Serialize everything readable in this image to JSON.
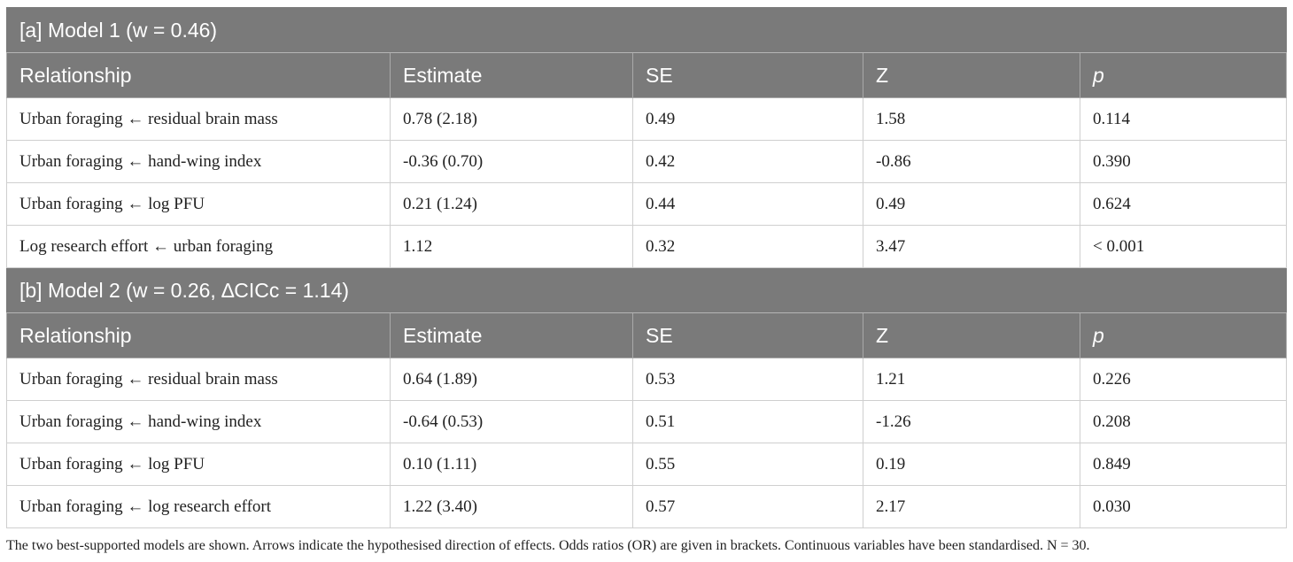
{
  "model1": {
    "title": "[a] Model 1 (w = 0.46)",
    "headers": [
      "Relationship",
      "Estimate",
      "SE",
      "Z",
      "p"
    ],
    "rows": [
      [
        "Urban foraging ← residual brain mass",
        "0.78 (2.18)",
        "0.49",
        "1.58",
        "0.114"
      ],
      [
        "Urban foraging ← hand-wing index",
        "-0.36 (0.70)",
        "0.42",
        "-0.86",
        "0.390"
      ],
      [
        "Urban foraging ← log PFU",
        "0.21 (1.24)",
        "0.44",
        "0.49",
        "0.624"
      ],
      [
        "Log research effort ← urban foraging",
        "1.12",
        "0.32",
        "3.47",
        "< 0.001"
      ]
    ]
  },
  "model2": {
    "title": "[b] Model 2 (w = 0.26, ∆CICc = 1.14)",
    "headers": [
      "Relationship",
      "Estimate",
      "SE",
      "Z",
      "p"
    ],
    "rows": [
      [
        "Urban foraging ← residual brain mass",
        "0.64 (1.89)",
        "0.53",
        "1.21",
        "0.226"
      ],
      [
        "Urban foraging ← hand-wing index",
        "-0.64 (0.53)",
        "0.51",
        "-1.26",
        "0.208"
      ],
      [
        "Urban foraging ← log PFU",
        "0.10 (1.11)",
        "0.55",
        "0.19",
        "0.849"
      ],
      [
        "Urban foraging ← log research effort",
        "1.22 (3.40)",
        "0.57",
        "2.17",
        "0.030"
      ]
    ]
  },
  "footnote": "The two best-supported models are shown. Arrows indicate the hypothesised direction of effects. Odds ratios (OR) are given in brackets. Continuous variables have been standardised. N = 30."
}
